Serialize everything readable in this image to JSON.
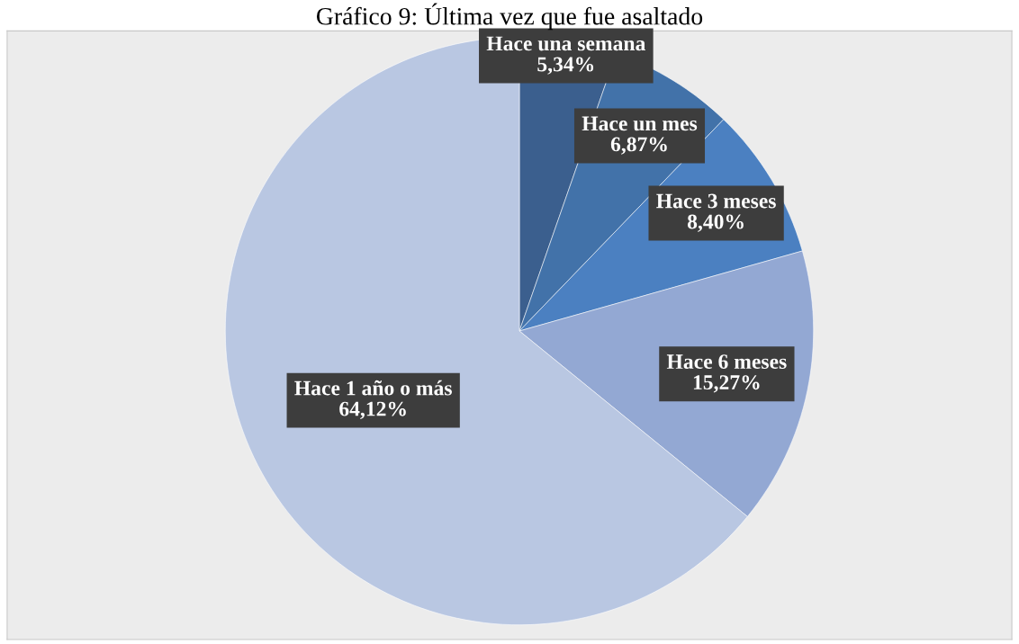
{
  "chart_data": {
    "type": "pie",
    "title": "Gráfico 9: Última vez que fue asaltado",
    "categories": [
      "Hace una semana",
      "Hace un mes",
      "Hace 3 meses",
      "Hace 6 meses",
      "Hace 1 año o más"
    ],
    "values": [
      5.34,
      6.87,
      8.4,
      15.27,
      64.12
    ],
    "value_labels": [
      "5,34%",
      "6,87%",
      "8,40%",
      "15,27%",
      "64,12%"
    ],
    "colors": [
      "#3b5f8e",
      "#4272a9",
      "#4b80c1",
      "#93a8d3",
      "#b9c7e2"
    ],
    "legend": false
  }
}
